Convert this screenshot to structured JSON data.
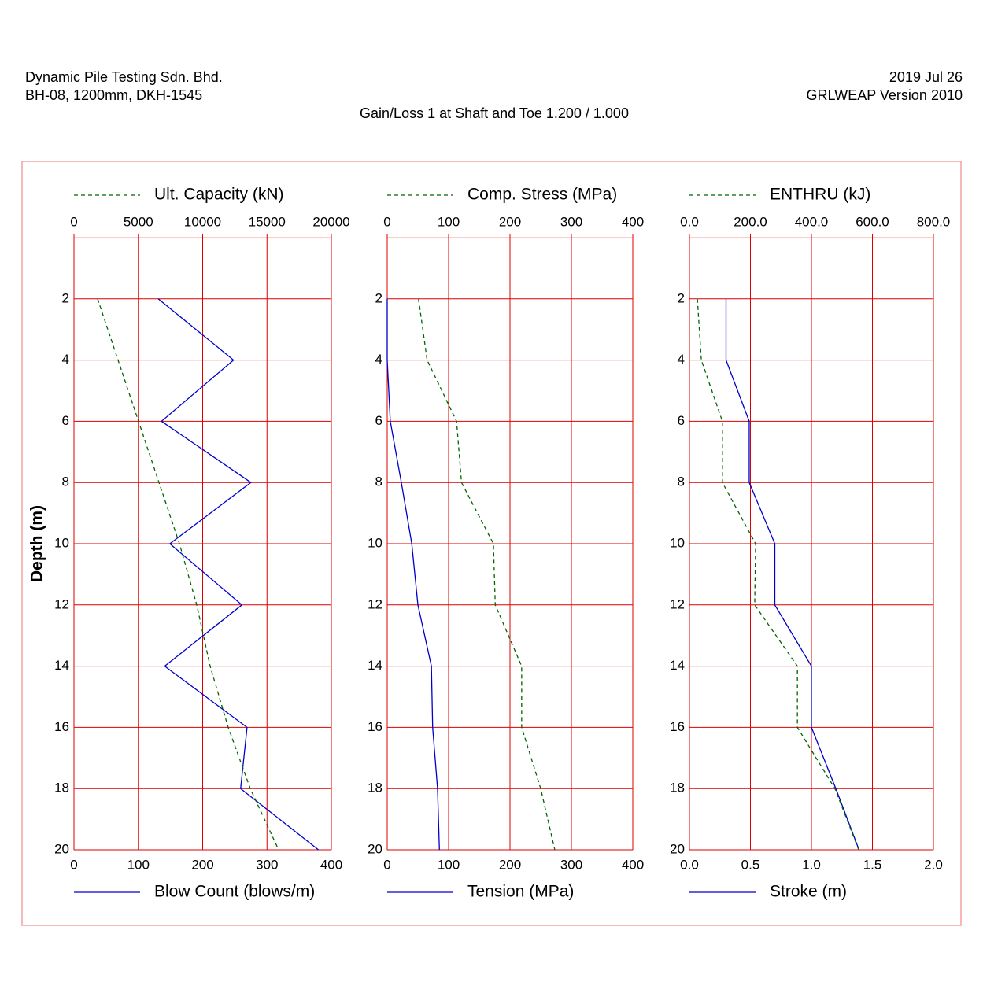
{
  "header": {
    "company": "Dynamic Pile Testing Sdn. Bhd.",
    "project": "BH-08, 1200mm, DKH-1545",
    "date": "2019 Jul 26",
    "software": "GRLWEAP Version 2010",
    "title": "Gain/Loss 1 at Shaft and Toe 1.200 / 1.000"
  },
  "chart_data": [
    {
      "type": "line",
      "ylabel": "Depth (m)",
      "y": [
        2,
        4,
        6,
        8,
        10,
        12,
        14,
        16,
        18,
        20
      ],
      "ylim": [
        0,
        20
      ],
      "yticks": [
        2,
        4,
        6,
        8,
        10,
        12,
        14,
        16,
        18,
        20
      ],
      "xlim": [
        0,
        400
      ],
      "xticks": [
        0,
        100,
        200,
        300,
        400
      ],
      "x2lim": [
        0,
        20000
      ],
      "x2ticks": [
        0,
        5000,
        10000,
        15000,
        20000
      ],
      "grid": true,
      "series": [
        {
          "name": "Blow Count (blows/m)",
          "color": "#0000cc",
          "axis": "x",
          "dashed": false,
          "values": [
            131,
            248,
            136,
            275,
            149,
            261,
            141,
            269,
            259,
            380
          ]
        },
        {
          "name": "Ult. Capacity (kN)",
          "color": "#006600",
          "axis": "x2",
          "dashed": true,
          "values": [
            1835,
            3425,
            5015,
            6606,
            8196,
            9541,
            10581,
            11988,
            13700,
            15902
          ]
        }
      ]
    },
    {
      "type": "line",
      "y": [
        2,
        4,
        6,
        8,
        10,
        12,
        14,
        16,
        18,
        20
      ],
      "ylim": [
        0,
        20
      ],
      "yticks": [
        2,
        4,
        6,
        8,
        10,
        12,
        14,
        16,
        18,
        20
      ],
      "xlim": [
        0,
        400
      ],
      "xticks": [
        0,
        100,
        200,
        300,
        400
      ],
      "x2lim": [
        0,
        400
      ],
      "x2ticks": [
        0,
        100,
        200,
        300,
        400
      ],
      "grid": true,
      "series": [
        {
          "name": "Tension (MPa)",
          "color": "#0000cc",
          "axis": "x",
          "dashed": false,
          "values": [
            0,
            0,
            5,
            23,
            40,
            50,
            72,
            74,
            82,
            85
          ]
        },
        {
          "name": "Comp. Stress (MPa)",
          "color": "#006600",
          "axis": "x2",
          "dashed": true,
          "values": [
            51,
            65,
            113,
            121,
            173,
            176,
            219,
            219,
            250,
            273
          ]
        }
      ]
    },
    {
      "type": "line",
      "y": [
        2,
        4,
        6,
        8,
        10,
        12,
        14,
        16,
        18,
        20
      ],
      "ylim": [
        0,
        20
      ],
      "yticks": [
        2,
        4,
        6,
        8,
        10,
        12,
        14,
        16,
        18,
        20
      ],
      "xlim": [
        0,
        2
      ],
      "xticks": [
        {
          "value": 0,
          "label": "0.0"
        },
        {
          "value": 0.5,
          "label": "0.5"
        },
        {
          "value": 1,
          "label": "1.0"
        },
        {
          "value": 1.5,
          "label": "1.5"
        },
        {
          "value": 2,
          "label": "2.0"
        }
      ],
      "x2lim": [
        0,
        800
      ],
      "x2ticks": [
        {
          "value": 0,
          "label": "0.0"
        },
        {
          "value": 200,
          "label": "200.0"
        },
        {
          "value": 400,
          "label": "400.0"
        },
        {
          "value": 600,
          "label": "600.0"
        },
        {
          "value": 800,
          "label": "800.0"
        }
      ],
      "grid": true,
      "series": [
        {
          "name": "Stroke (m)",
          "color": "#0000cc",
          "axis": "x",
          "dashed": false,
          "values": [
            0.3,
            0.3,
            0.49,
            0.49,
            0.7,
            0.7,
            1.0,
            1.0,
            1.2,
            1.39
          ]
        },
        {
          "name": "ENTHRU (kJ)",
          "color": "#006600",
          "axis": "x2",
          "dashed": true,
          "values": [
            26,
            39,
            108,
            108,
            217,
            214,
            354,
            354,
            477,
            555
          ]
        }
      ]
    }
  ]
}
